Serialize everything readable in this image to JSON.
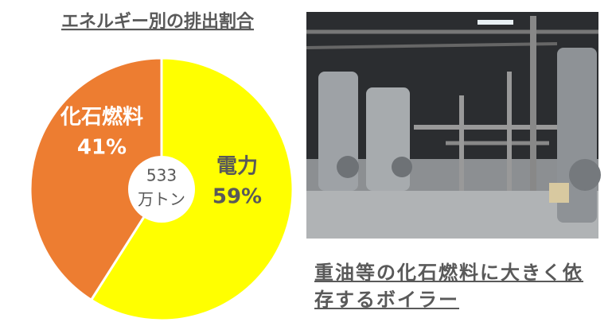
{
  "chart_data": {
    "type": "pie",
    "title": "エネルギー別の排出割合",
    "categories": [
      "電力",
      "化石燃料"
    ],
    "values": [
      59,
      41
    ],
    "value_labels": [
      "59%",
      "41%"
    ],
    "colors": [
      "#ffff00",
      "#ed7d31"
    ],
    "label_colors": [
      "#595959",
      "#ffffff"
    ],
    "center_text": [
      "533",
      "万トン"
    ]
  },
  "photo_caption": "重油等の化石燃料に大きく依存するボイラー"
}
